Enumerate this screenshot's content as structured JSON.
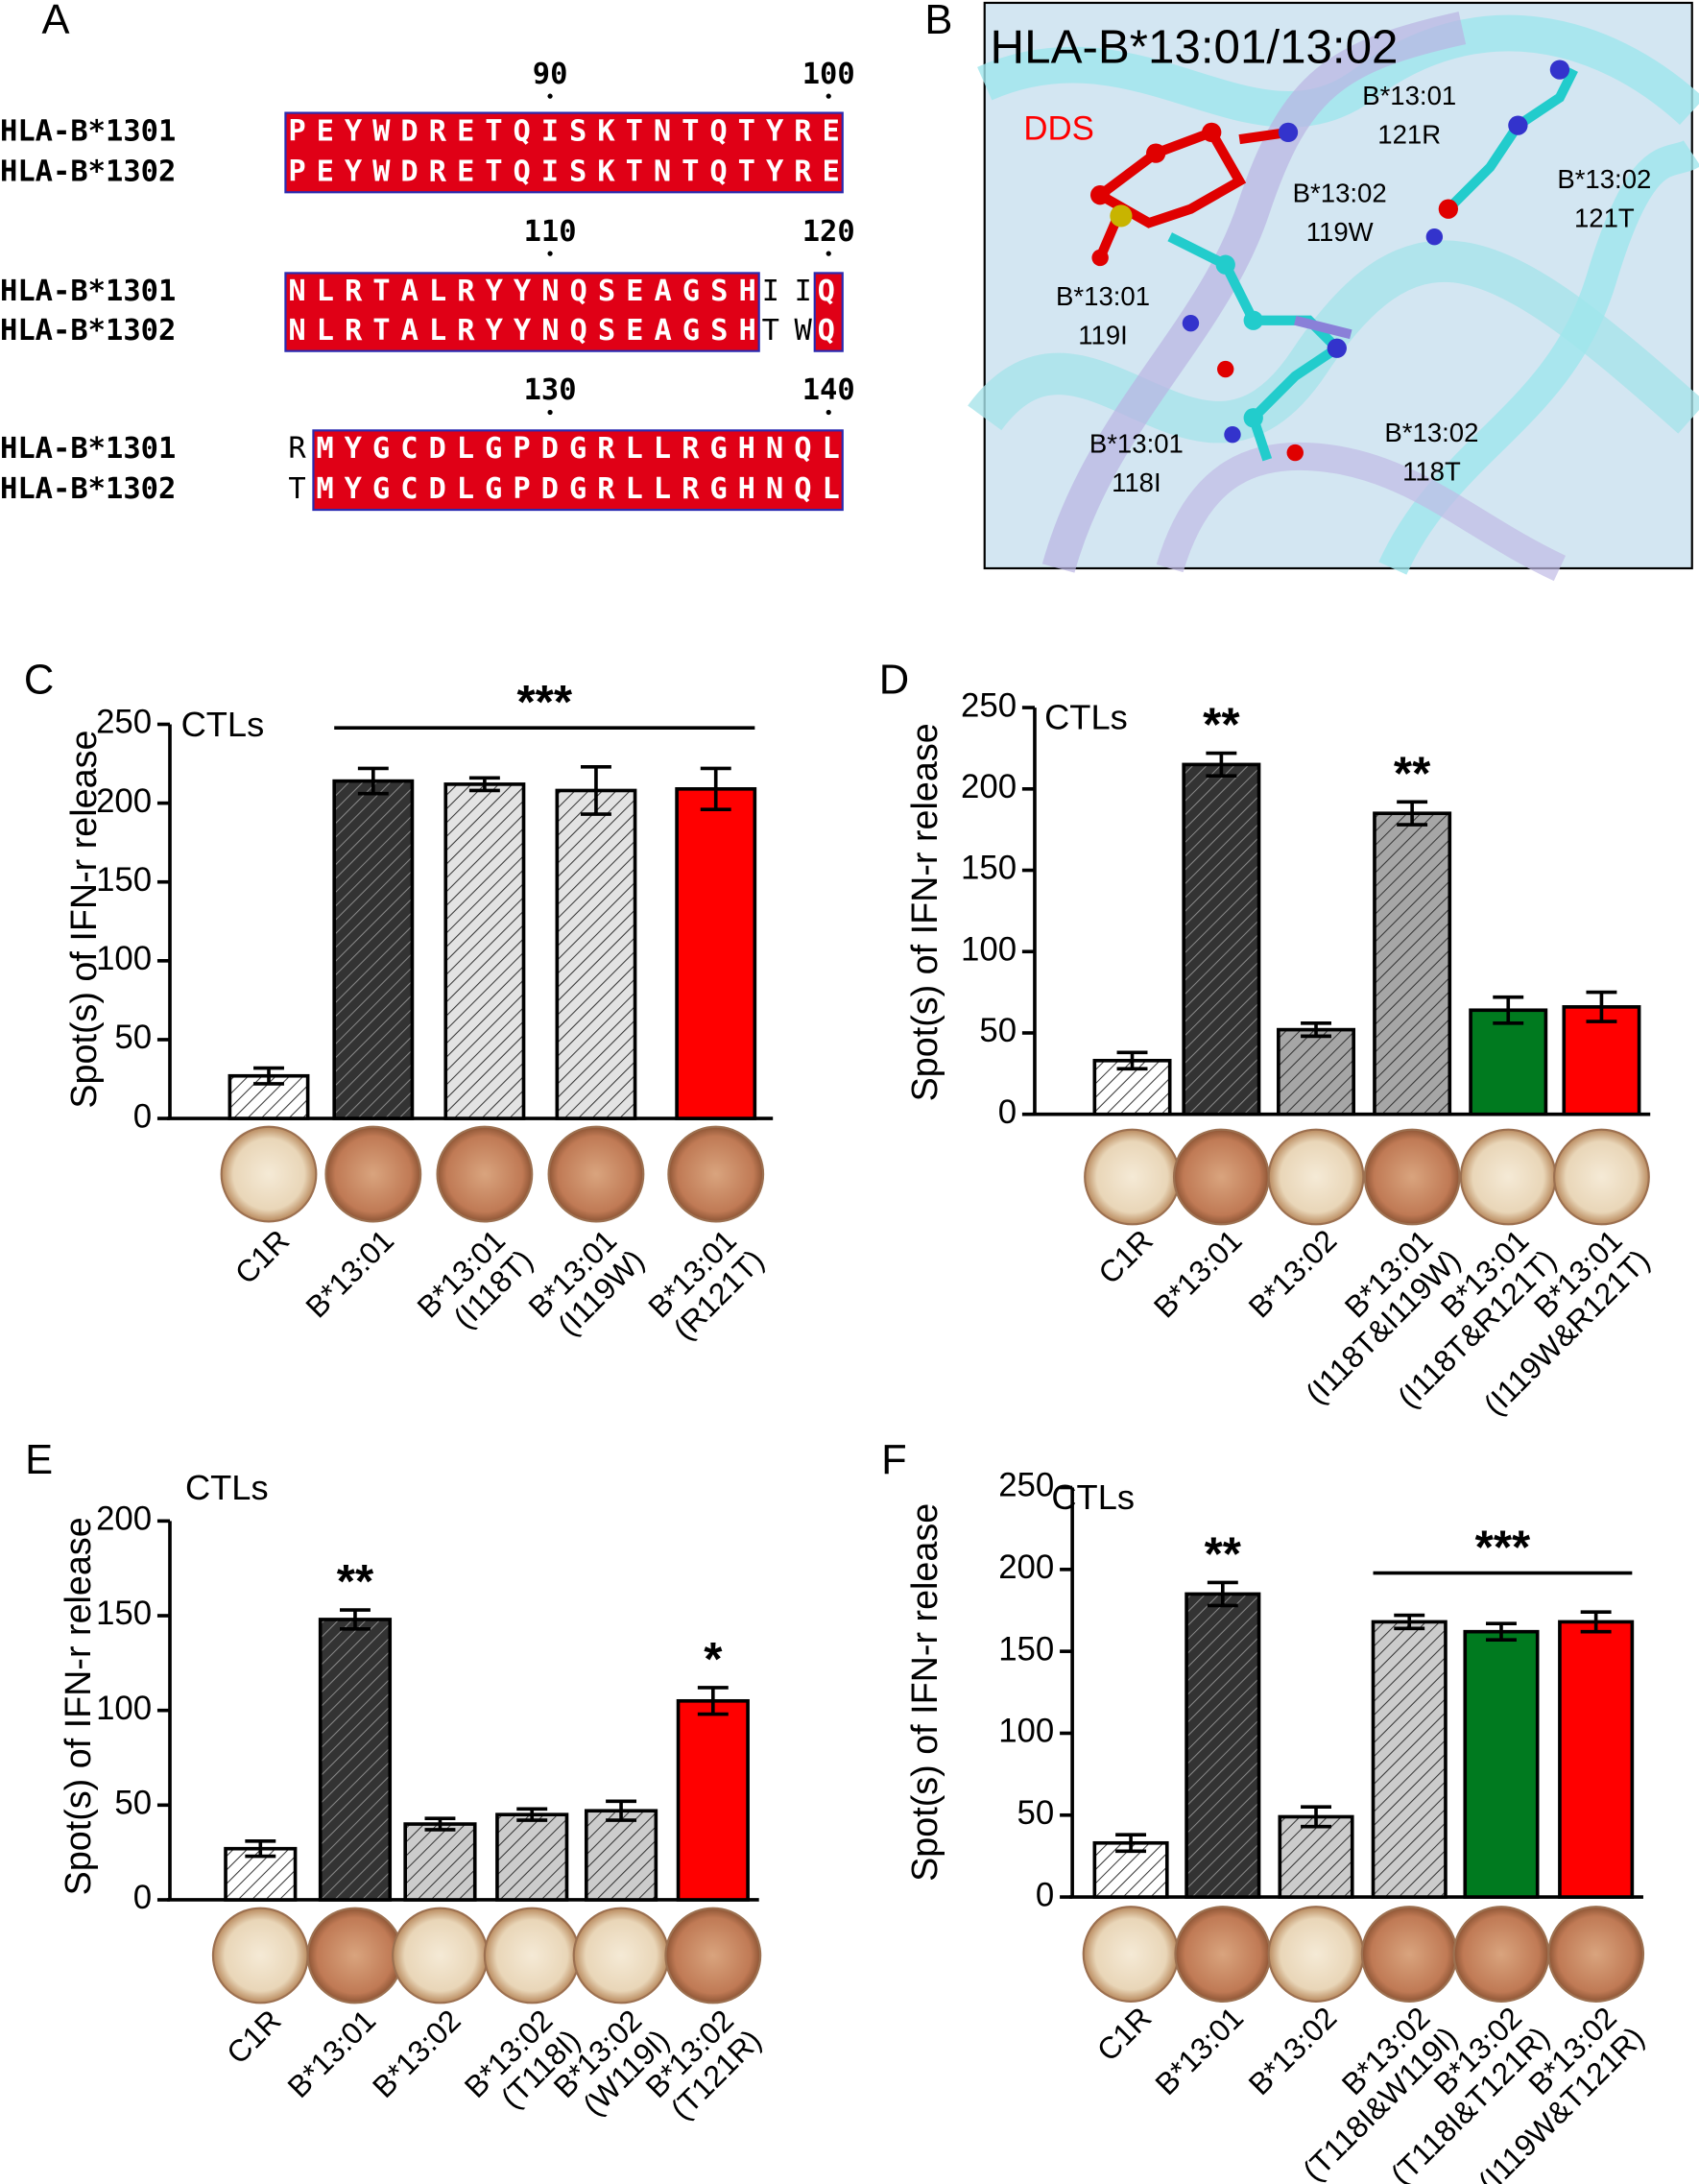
{
  "alignment": {
    "label": "A",
    "blocks": [
      {
        "numbers": [
          90,
          100
        ],
        "rows": [
          {
            "name": "HLA-B*1301",
            "segments": [
              {
                "text": "PEYWDRETQISKTNTQTYRE",
                "shaded": true
              }
            ]
          },
          {
            "name": "HLA-B*1302",
            "segments": [
              {
                "text": "PEYWDRETQISKTNTQTYRE",
                "shaded": true
              }
            ]
          }
        ]
      },
      {
        "numbers": [
          110,
          120
        ],
        "rows": [
          {
            "name": "HLA-B*1301",
            "segments": [
              {
                "text": "NLRTALRYYNQSEAGSH",
                "shaded": true
              },
              {
                "text": "II",
                "shaded": false
              },
              {
                "text": "Q",
                "shaded": true
              }
            ]
          },
          {
            "name": "HLA-B*1302",
            "segments": [
              {
                "text": "NLRTALRYYNQSEAGSH",
                "shaded": true
              },
              {
                "text": "TW",
                "shaded": false
              },
              {
                "text": "Q",
                "shaded": true
              }
            ]
          }
        ]
      },
      {
        "numbers": [
          130,
          140
        ],
        "rows": [
          {
            "name": "HLA-B*1301",
            "segments": [
              {
                "text": "R",
                "shaded": false
              },
              {
                "text": "MYGCDLGPDGRLLRGHNQL",
                "shaded": true
              }
            ]
          },
          {
            "name": "HLA-B*1302",
            "segments": [
              {
                "text": "T",
                "shaded": false
              },
              {
                "text": "MYGCDLGPDGRLLRGHNQL",
                "shaded": true
              }
            ]
          }
        ]
      }
    ]
  },
  "structure": {
    "label": "B",
    "title": "HLA-B*13:01/13:02",
    "ligand": "DDS",
    "residues": [
      [
        "B*13:01",
        "121R"
      ],
      [
        "B*13:02",
        "119W"
      ],
      [
        "B*13:02",
        "121T"
      ],
      [
        "B*13:01",
        "119I"
      ],
      [
        "B*13:01",
        "118I"
      ],
      [
        "B*13:02",
        "118T"
      ]
    ]
  },
  "chart_data": [
    {
      "type": "bar",
      "panel_label": "C",
      "annotation": "CTLs",
      "y_label": "Spot(s) of IFN-r release",
      "categories": [
        [
          "C1R"
        ],
        [
          "B*13:01"
        ],
        [
          "B*13:01",
          "(I118T)"
        ],
        [
          "B*13:01",
          "(I119W)"
        ],
        [
          "B*13:01",
          "(R121T)"
        ]
      ],
      "values": [
        27,
        214,
        212,
        208,
        209
      ],
      "errors": [
        5,
        8,
        4,
        15,
        13
      ],
      "colors": [
        "#ffffff",
        "#333333",
        "#e3e3e3",
        "#e3e3e3",
        "#ff0000"
      ],
      "hatched": [
        true,
        true,
        true,
        true,
        false
      ],
      "ylim": [
        0,
        250
      ],
      "yticks": [
        0,
        50,
        100,
        150,
        200,
        250
      ],
      "significance": [
        {
          "label": "***",
          "span": [
            1,
            4
          ]
        }
      ]
    },
    {
      "type": "bar",
      "panel_label": "D",
      "annotation": "CTLs",
      "y_label": "Spot(s) of IFN-r release",
      "categories": [
        [
          "C1R"
        ],
        [
          "B*13:01"
        ],
        [
          "B*13:02"
        ],
        [
          "B*13:01",
          "(I118T&I119W)"
        ],
        [
          "B*13:01",
          "(I118T&R121T)"
        ],
        [
          "B*13:01",
          "(I119W&R121T)"
        ]
      ],
      "values": [
        33,
        215,
        52,
        185,
        64,
        66
      ],
      "errors": [
        5,
        7,
        4,
        7,
        8,
        9
      ],
      "colors": [
        "#ffffff",
        "#333333",
        "#a6a6a6",
        "#a6a6a6",
        "#007a1f",
        "#ff0000"
      ],
      "hatched": [
        true,
        true,
        true,
        true,
        false,
        false
      ],
      "ylim": [
        0,
        250
      ],
      "yticks": [
        0,
        50,
        100,
        150,
        200,
        250
      ],
      "significance": [
        {
          "label": "**",
          "span": [
            1,
            1
          ]
        },
        {
          "label": "**",
          "span": [
            3,
            3
          ]
        }
      ]
    },
    {
      "type": "bar",
      "panel_label": "E",
      "annotation": "CTLs",
      "y_label": "Spot(s) of IFN-r release",
      "categories": [
        [
          "C1R"
        ],
        [
          "B*13:01"
        ],
        [
          "B*13:02"
        ],
        [
          "B*13:02",
          "(T118I)"
        ],
        [
          "B*13:02",
          "(W119I)"
        ],
        [
          "B*13:02",
          "(T121R)"
        ]
      ],
      "values": [
        27,
        148,
        40,
        45,
        47,
        105
      ],
      "errors": [
        4,
        5,
        3,
        3,
        5,
        7
      ],
      "colors": [
        "#ffffff",
        "#333333",
        "#cccccc",
        "#cccccc",
        "#cccccc",
        "#ff0000"
      ],
      "hatched": [
        true,
        true,
        true,
        true,
        true,
        false
      ],
      "ylim": [
        0,
        200
      ],
      "yticks": [
        0,
        50,
        100,
        150,
        200
      ],
      "significance": [
        {
          "label": "**",
          "span": [
            1,
            1
          ]
        },
        {
          "label": "*",
          "span": [
            5,
            5
          ]
        }
      ]
    },
    {
      "type": "bar",
      "panel_label": "F",
      "annotation": "CTLs",
      "y_label": "Spot(s) of IFN-r release",
      "categories": [
        [
          "C1R"
        ],
        [
          "B*13:01"
        ],
        [
          "B*13:02"
        ],
        [
          "B*13:02",
          "(T118I&W119I)"
        ],
        [
          "B*13:02",
          "(T118I&T121R)"
        ],
        [
          "B*13:02",
          "(I119W&T121R)"
        ]
      ],
      "values": [
        33,
        185,
        49,
        168,
        162,
        168
      ],
      "errors": [
        5,
        7,
        6,
        4,
        5,
        6
      ],
      "colors": [
        "#ffffff",
        "#333333",
        "#cccccc",
        "#cccccc",
        "#007a1f",
        "#ff0000"
      ],
      "hatched": [
        true,
        true,
        true,
        true,
        false,
        false
      ],
      "ylim": [
        0,
        250
      ],
      "yticks": [
        0,
        50,
        100,
        150,
        200,
        250
      ],
      "significance": [
        {
          "label": "**",
          "span": [
            1,
            1
          ]
        },
        {
          "label": "***",
          "span": [
            3,
            5
          ]
        }
      ]
    }
  ]
}
